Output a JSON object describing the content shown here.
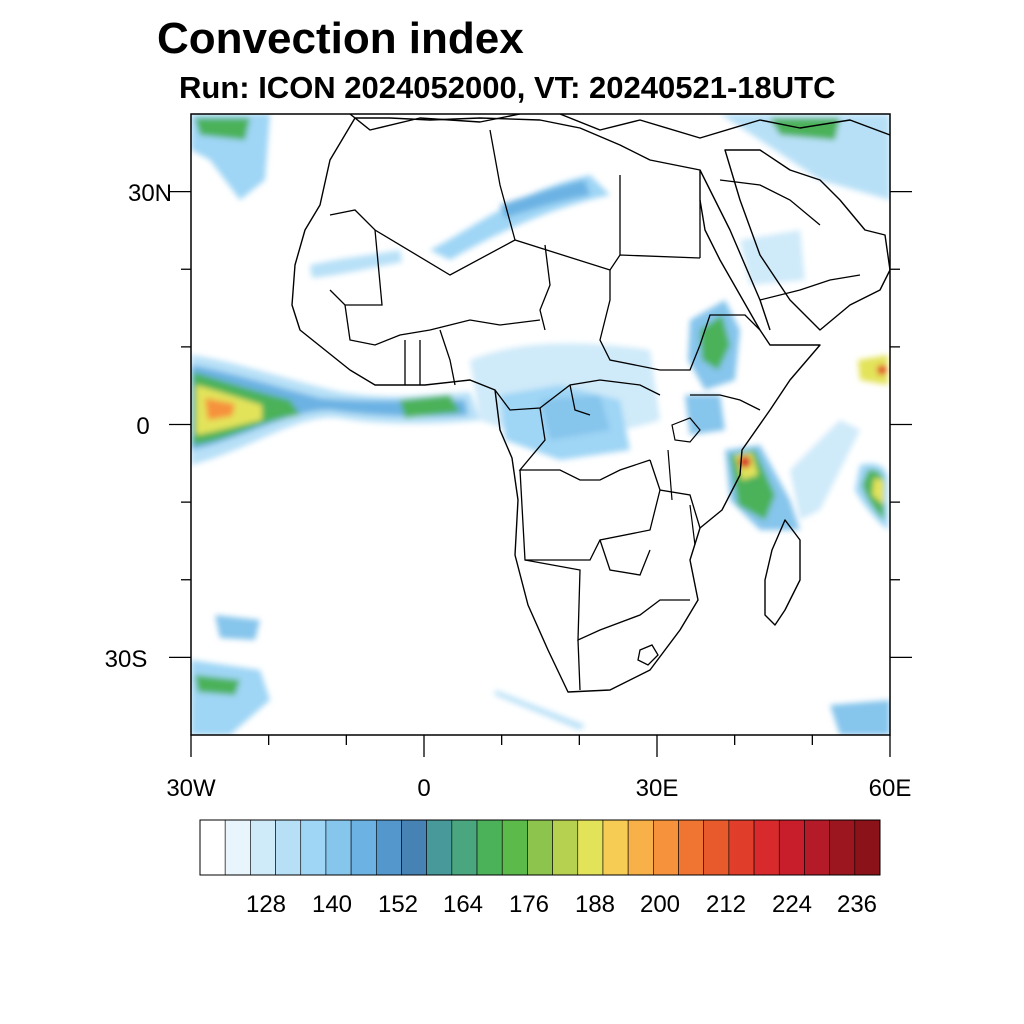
{
  "header": {
    "title": "Convection index",
    "subtitle": "Run: ICON 2024052000,  VT: 20240521-18UTC"
  },
  "map": {
    "lat_labels": [
      "30N",
      "0",
      "30S"
    ],
    "lon_labels": [
      "30W",
      "0",
      "30E",
      "60E"
    ],
    "lon_range": [
      -30,
      60
    ],
    "lat_range": [
      -40,
      40
    ]
  },
  "colorbar": {
    "labels": [
      "128",
      "140",
      "152",
      "164",
      "176",
      "188",
      "200",
      "212",
      "224",
      "236"
    ],
    "colors": [
      "#ffffff",
      "#e8f5fd",
      "#cfeaf9",
      "#b7e0f7",
      "#9fd5f5",
      "#86c5ec",
      "#6cb2e3",
      "#5497cc",
      "#4682b4",
      "#48999a",
      "#4aa67e",
      "#4cb25a",
      "#5cba4a",
      "#8cc44d",
      "#b6d14f",
      "#e3e35a",
      "#f7cc55",
      "#f8b048",
      "#f6923c",
      "#f07432",
      "#e85a2c",
      "#e13d2b",
      "#d82a2d",
      "#c81e2c",
      "#b41a28",
      "#9c1620",
      "#8a1218"
    ]
  }
}
